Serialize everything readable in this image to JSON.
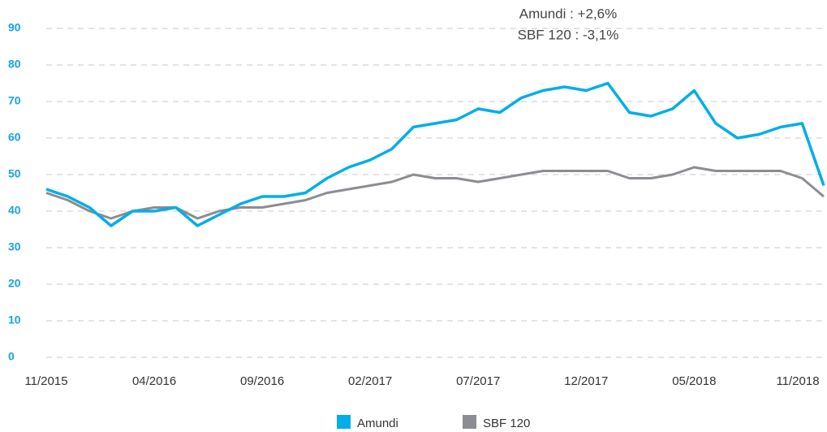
{
  "chart_data": {
    "type": "line",
    "annotations": [
      "Amundi : +2,6%",
      "SBF 120 : -3,1%"
    ],
    "categories": [
      "11/2015",
      null,
      null,
      null,
      null,
      "04/2016",
      null,
      null,
      null,
      null,
      "09/2016",
      null,
      null,
      null,
      null,
      "02/2017",
      null,
      null,
      null,
      null,
      "07/2017",
      null,
      null,
      null,
      null,
      "12/2017",
      null,
      null,
      null,
      null,
      "05/2018",
      null,
      null,
      null,
      null,
      null,
      "11/2018"
    ],
    "series": [
      {
        "name": "Amundi",
        "color": "#00aee8",
        "values": [
          46,
          44,
          41,
          36,
          40,
          40,
          41,
          36,
          39,
          42,
          44,
          44,
          45,
          49,
          52,
          54,
          57,
          63,
          64,
          65,
          68,
          67,
          71,
          73,
          74,
          73,
          75,
          67,
          66,
          68,
          73,
          64,
          60,
          61,
          63,
          64,
          47
        ]
      },
      {
        "name": "SBF 120",
        "color": "#8c8c93",
        "values": [
          45,
          43,
          40,
          38,
          40,
          41,
          41,
          38,
          40,
          41,
          41,
          42,
          43,
          45,
          46,
          47,
          48,
          50,
          49,
          49,
          48,
          49,
          50,
          51,
          51,
          51,
          51,
          49,
          49,
          50,
          52,
          51,
          51,
          51,
          51,
          49,
          44
        ]
      }
    ],
    "ylim": [
      0,
      90
    ],
    "yticks": [
      0,
      10,
      20,
      30,
      40,
      50,
      60,
      70,
      80,
      90
    ],
    "grid": true,
    "legend": "bottom"
  }
}
